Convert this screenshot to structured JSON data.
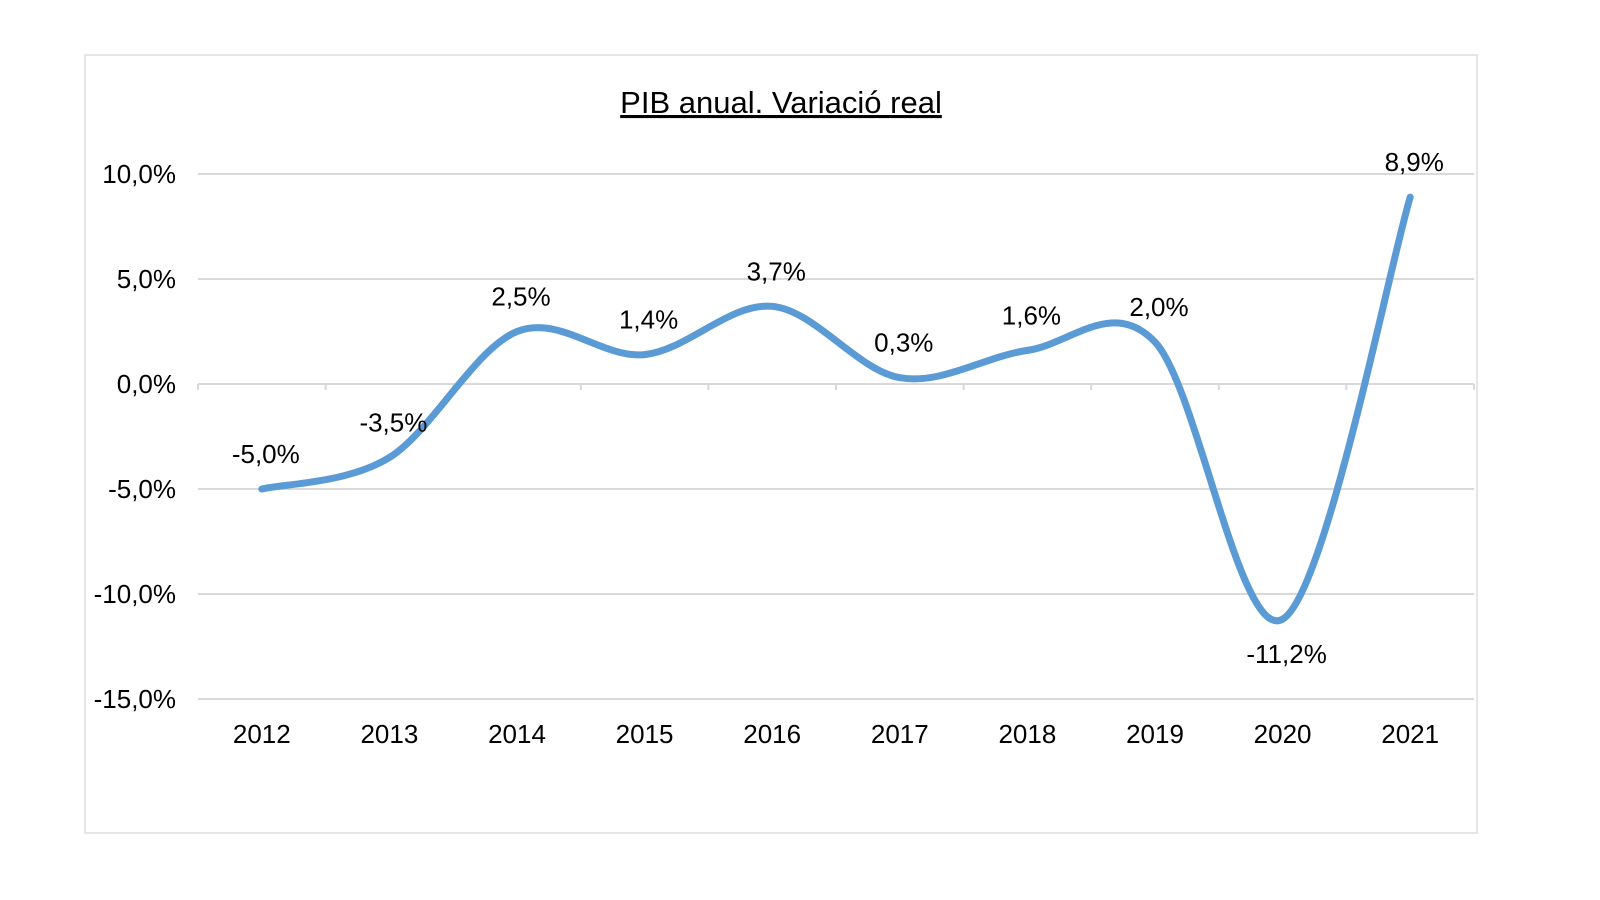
{
  "chart_data": {
    "type": "line",
    "title": "PIB anual. Variació real",
    "categories": [
      "2012",
      "2013",
      "2014",
      "2015",
      "2016",
      "2017",
      "2018",
      "2019",
      "2020",
      "2021"
    ],
    "series": [
      {
        "values": [
          -5.0,
          -3.5,
          2.5,
          1.4,
          3.7,
          0.3,
          1.6,
          2.0,
          -11.2,
          8.9
        ],
        "labels": [
          "-5,0%",
          "-3,5%",
          "2,5%",
          "1,4%",
          "3,7%",
          "0,3%",
          "1,6%",
          "2,0%",
          "-11,2%",
          "8,9%"
        ],
        "color": "#5b9bd5",
        "smooth": true
      }
    ],
    "y_ticks": [
      {
        "value": 10,
        "label": "10,0%"
      },
      {
        "value": 5,
        "label": "5,0%"
      },
      {
        "value": 0,
        "label": "0,0%"
      },
      {
        "value": -5,
        "label": "-5,0%"
      },
      {
        "value": -10,
        "label": "-10,0%"
      },
      {
        "value": -15,
        "label": "-15,0%"
      }
    ],
    "ylim": [
      -15,
      10
    ],
    "grid": true,
    "legend": "none"
  }
}
